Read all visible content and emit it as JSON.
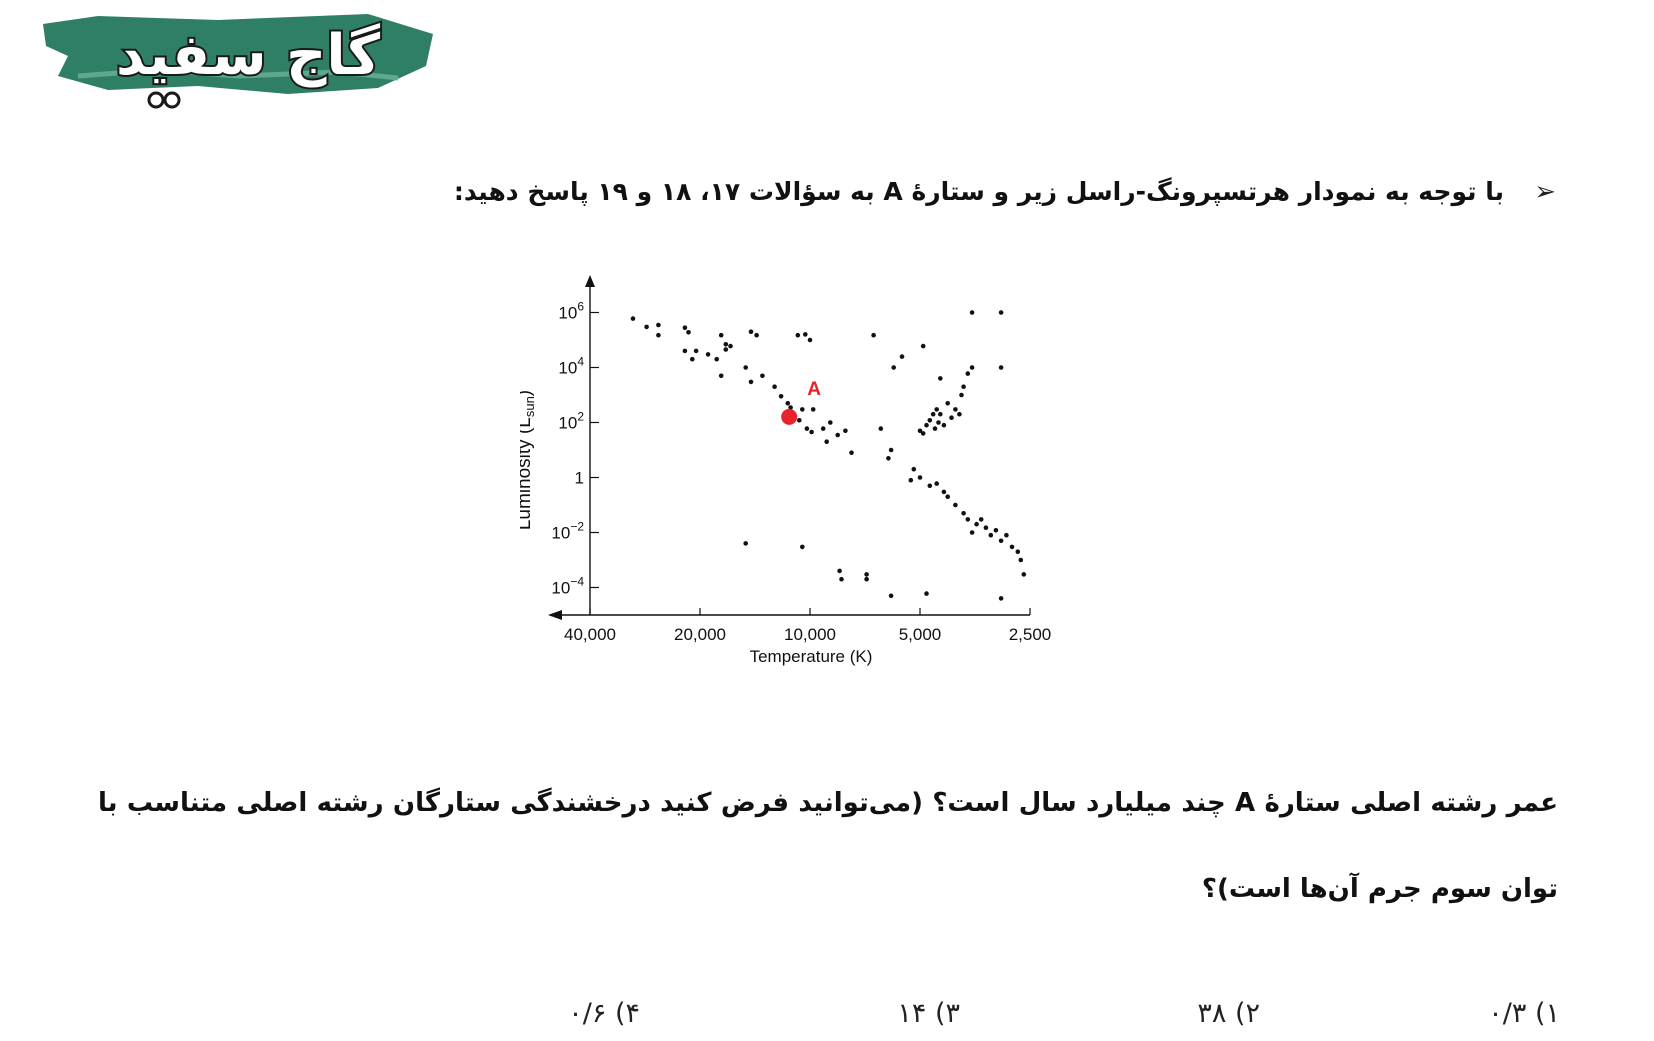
{
  "logo": {
    "text": "گاج سفید"
  },
  "intro": {
    "bullet_icon": "arrow-bullet-icon",
    "text": "با توجه به نمودار هرتسپرونگ-راسل زیر و ستارۀ A به سؤالات ۱۷، ۱۸ و ۱۹ پاسخ دهید:"
  },
  "question": {
    "text": "عمر رشته اصلی ستارۀ A چند میلیارد سال است؟ (می‌توانید فرض کنید درخشندگی ستارگان رشته اصلی متناسب با توان سوم جرم آن‌ها است)؟"
  },
  "options": [
    {
      "label": "۱)",
      "value": "۰/۳"
    },
    {
      "label": "۲)",
      "value": "۳۸"
    },
    {
      "label": "۳)",
      "value": "۱۴"
    },
    {
      "label": "۴)",
      "value": "۰/۶"
    }
  ],
  "chart_data": {
    "type": "scatter",
    "xlabel": "Temperature (K)",
    "ylabel_main": "Luminosity (L",
    "ylabel_sub": "sun",
    "ylabel_close": ")",
    "x_scale": "log",
    "x_reversed": true,
    "xlim": [
      40000,
      2500
    ],
    "x_ticks": [
      {
        "value": 40000,
        "label": "40,000"
      },
      {
        "value": 20000,
        "label": "20,000"
      },
      {
        "value": 10000,
        "label": "10,000"
      },
      {
        "value": 5000,
        "label": "5,000"
      },
      {
        "value": 2500,
        "label": "2,500"
      }
    ],
    "y_scale": "log",
    "ylim": [
      1e-05,
      10000000
    ],
    "y_ticks": [
      {
        "value": 1000000,
        "base": "10",
        "exp": "6"
      },
      {
        "value": 10000,
        "base": "10",
        "exp": "4"
      },
      {
        "value": 100,
        "base": "10",
        "exp": "2"
      },
      {
        "value": 1,
        "base": "1",
        "exp": ""
      },
      {
        "value": 0.01,
        "base": "10",
        "exp": "−2"
      },
      {
        "value": 0.0001,
        "base": "10",
        "exp": "−4"
      }
    ],
    "highlight": {
      "name": "A",
      "x": 11400,
      "y": 160,
      "color": "#e8232b"
    },
    "points": [
      [
        30500,
        600000
      ],
      [
        28000,
        300000
      ],
      [
        26000,
        350000
      ],
      [
        26000,
        150000
      ],
      [
        22000,
        280000
      ],
      [
        22000,
        40000
      ],
      [
        21500,
        190000
      ],
      [
        21000,
        20000
      ],
      [
        20500,
        40000
      ],
      [
        19000,
        30000
      ],
      [
        18000,
        20000
      ],
      [
        17500,
        150000
      ],
      [
        17000,
        45000
      ],
      [
        17000,
        70000
      ],
      [
        16500,
        60000
      ],
      [
        17500,
        5000
      ],
      [
        15000,
        10000
      ],
      [
        14500,
        200000
      ],
      [
        14500,
        3000
      ],
      [
        14000,
        150000
      ],
      [
        13500,
        5000
      ],
      [
        12500,
        2000
      ],
      [
        12000,
        900
      ],
      [
        11500,
        500
      ],
      [
        10800,
        150000
      ],
      [
        10300,
        160000
      ],
      [
        10000,
        100000
      ],
      [
        11300,
        350
      ],
      [
        10700,
        120
      ],
      [
        10500,
        300
      ],
      [
        10200,
        60
      ],
      [
        9900,
        45
      ],
      [
        9800,
        300
      ],
      [
        9200,
        60
      ],
      [
        9000,
        20
      ],
      [
        8800,
        100
      ],
      [
        8400,
        35
      ],
      [
        8000,
        50
      ],
      [
        7700,
        8
      ],
      [
        6700,
        150000
      ],
      [
        6400,
        60
      ],
      [
        6100,
        5
      ],
      [
        6000,
        10
      ],
      [
        5900,
        10000
      ],
      [
        5600,
        25000
      ],
      [
        5300,
        0.8
      ],
      [
        5200,
        2
      ],
      [
        5000,
        1
      ],
      [
        4900,
        60000
      ],
      [
        4700,
        0.5
      ],
      [
        4500,
        0.6
      ],
      [
        4300,
        0.3
      ],
      [
        4200,
        0.2
      ],
      [
        4000,
        0.1
      ],
      [
        4400,
        4000
      ],
      [
        3800,
        0.05
      ],
      [
        3700,
        0.03
      ],
      [
        3600,
        0.01
      ],
      [
        3500,
        0.02
      ],
      [
        3400,
        0.03
      ],
      [
        3300,
        0.015
      ],
      [
        3200,
        0.008
      ],
      [
        3100,
        0.012
      ],
      [
        3000,
        0.005
      ],
      [
        2900,
        0.008
      ],
      [
        2800,
        0.003
      ],
      [
        2700,
        0.002
      ],
      [
        2650,
        0.001
      ],
      [
        2600,
        0.0003
      ],
      [
        3600,
        1000000
      ],
      [
        3000,
        1000000
      ],
      [
        3800,
        2000
      ],
      [
        3700,
        6000
      ],
      [
        3600,
        10000
      ],
      [
        3900,
        200
      ],
      [
        3850,
        1000
      ],
      [
        3000,
        10000
      ],
      [
        5000,
        50
      ],
      [
        4900,
        40
      ],
      [
        4800,
        80
      ],
      [
        4700,
        120
      ],
      [
        4600,
        200
      ],
      [
        4550,
        60
      ],
      [
        4500,
        300
      ],
      [
        4450,
        100
      ],
      [
        4400,
        200
      ],
      [
        4300,
        80
      ],
      [
        4200,
        500
      ],
      [
        4100,
        150
      ],
      [
        4000,
        300
      ],
      [
        15000,
        0.004
      ],
      [
        10500,
        0.003
      ],
      [
        8300,
        0.0004
      ],
      [
        8200,
        0.0002
      ],
      [
        7000,
        0.0003
      ],
      [
        7000,
        0.0002
      ],
      [
        6000,
        5e-05
      ],
      [
        4800,
        6e-05
      ],
      [
        3000,
        4e-05
      ]
    ]
  }
}
